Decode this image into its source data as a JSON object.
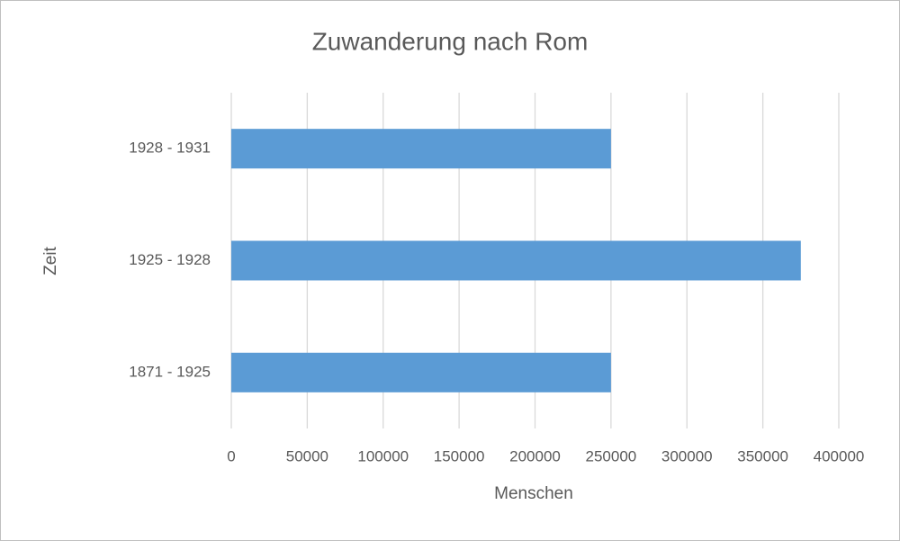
{
  "chart_data": {
    "type": "bar",
    "orientation": "horizontal",
    "title": "Zuwanderung nach Rom",
    "x_label": "Menschen",
    "y_label": "Zeit",
    "categories": [
      "1871 - 1925",
      "1925 - 1928",
      "1928 - 1931"
    ],
    "values": [
      250000,
      375000,
      250000
    ],
    "color": "#5b9bd5",
    "xlim": [
      0,
      400000
    ],
    "xticks": [
      0,
      50000,
      100000,
      150000,
      200000,
      250000,
      300000,
      350000,
      400000
    ],
    "grid": true
  }
}
